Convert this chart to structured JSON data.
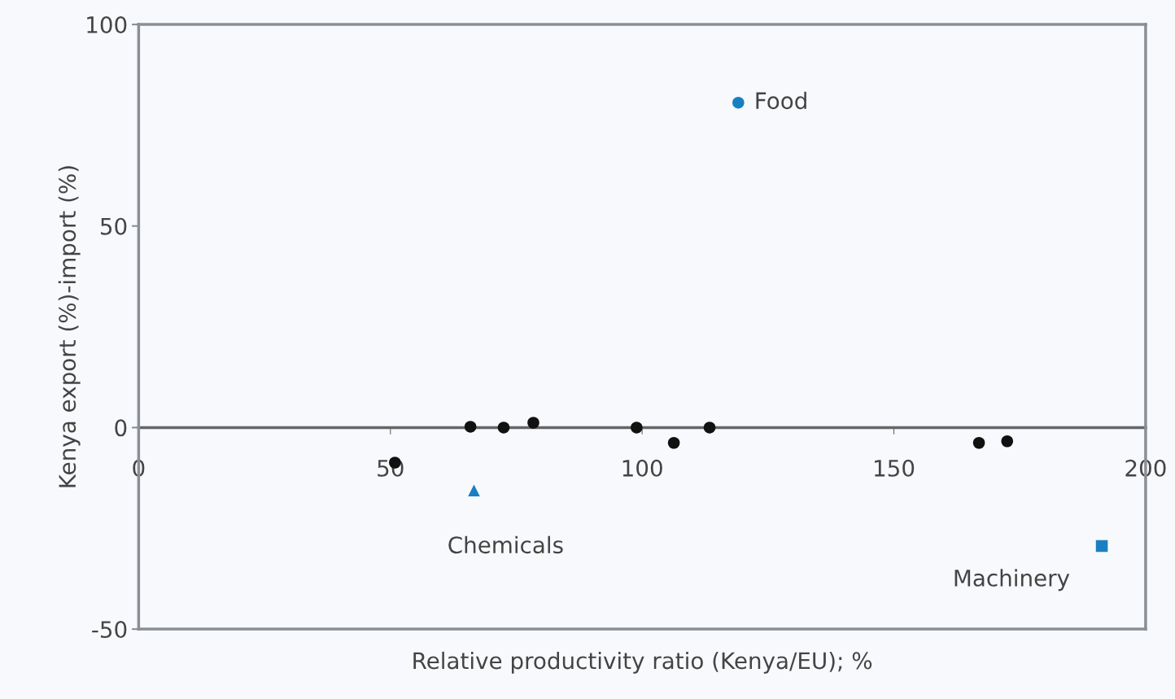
{
  "chart_data": {
    "type": "scatter",
    "xlabel": "Relative productivity ratio (Kenya/EU); %",
    "ylabel": "Kenya export (%)-import (%)",
    "xlim": [
      0,
      200
    ],
    "ylim": [
      -50,
      100
    ],
    "xticks": [
      0,
      50,
      100,
      150,
      200
    ],
    "yticks": [
      -50,
      0,
      50,
      100
    ],
    "grid": false,
    "legend": false,
    "series": [
      {
        "color": "#111111",
        "marker": "circle",
        "x": [
          50.9,
          65.9,
          72.5,
          78.4,
          98.9,
          106.3,
          113.4,
          166.9,
          172.5
        ],
        "values": [
          -8.7,
          0.2,
          0,
          1.2,
          0,
          -3.8,
          0,
          -3.8,
          -3.4
        ]
      },
      {
        "color": "#1a7fc1",
        "marker": "circle",
        "x": [
          119.1
        ],
        "values": [
          80.6
        ]
      },
      {
        "color": "#1a7fc1",
        "marker": "triangle",
        "x": [
          66.6
        ],
        "values": [
          -15.6
        ]
      },
      {
        "color": "#1a7fc1",
        "marker": "square",
        "x": [
          191.3
        ],
        "values": [
          -29.4
        ]
      }
    ],
    "annotations": [
      {
        "text": "Food",
        "x": 119.1,
        "y": 80.6
      },
      {
        "text": "Chemicals",
        "x": 66.6,
        "y": -15.6
      },
      {
        "text": "Machinery",
        "x": 191.3,
        "y": -29.4
      }
    ]
  }
}
